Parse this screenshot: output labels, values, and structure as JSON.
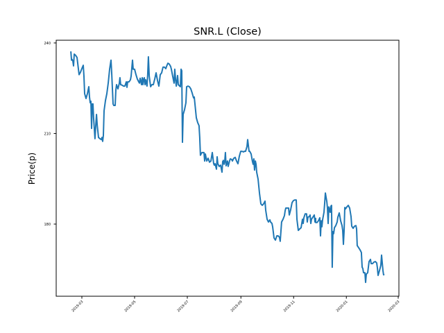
{
  "chart_data": {
    "type": "line",
    "title": "SNR.L (Close)",
    "xlabel": "",
    "ylabel": "Price(p)",
    "x_unit": "days since 2019-03-01",
    "xlim": [
      -29.7,
      366.8
    ],
    "ylim": [
      156.1,
      240.9
    ],
    "grid": false,
    "color": "#1f77b4",
    "yticks": [
      {
        "value": 180,
        "label": "180"
      },
      {
        "value": 210,
        "label": "210"
      },
      {
        "value": 240,
        "label": "240"
      }
    ],
    "xticks": [
      {
        "value": 0,
        "label": "2019-03"
      },
      {
        "value": 61,
        "label": "2019-05"
      },
      {
        "value": 122,
        "label": "2019-07"
      },
      {
        "value": 184,
        "label": "2019-09"
      },
      {
        "value": 245,
        "label": "2019-11"
      },
      {
        "value": 306,
        "label": "2020-01"
      },
      {
        "value": 366,
        "label": "2020-03"
      }
    ],
    "series": [
      {
        "name": "Close",
        "points": [
          [
            -12.8,
            237.2
          ],
          [
            -12.0,
            234.3
          ],
          [
            -11.2,
            234.5
          ],
          [
            -10.4,
            234.0
          ],
          [
            -9.6,
            232.4
          ],
          [
            -8.8,
            236.3
          ],
          [
            -7.2,
            235.9
          ],
          [
            -5.6,
            235.2
          ],
          [
            -3.2,
            229.5
          ],
          [
            -1.6,
            230.3
          ],
          [
            0,
            231.5
          ],
          [
            1.6,
            232.6
          ],
          [
            2.4,
            229.0
          ],
          [
            3.2,
            223.2
          ],
          [
            4.8,
            221.6
          ],
          [
            6.4,
            223.2
          ],
          [
            8.0,
            225.5
          ],
          [
            8.8,
            222.1
          ],
          [
            9.6,
            220.2
          ],
          [
            10.4,
            220.7
          ],
          [
            11.2,
            211.7
          ],
          [
            12.0,
            219.8
          ],
          [
            12.8,
            219.8
          ],
          [
            13.6,
            215.2
          ],
          [
            15.2,
            208.3
          ],
          [
            16.1,
            212.9
          ],
          [
            16.9,
            216.3
          ],
          [
            17.7,
            212.9
          ],
          [
            19.3,
            208.7
          ],
          [
            20.9,
            208.3
          ],
          [
            22.5,
            208.0
          ],
          [
            23.3,
            208.7
          ],
          [
            24.1,
            207.4
          ],
          [
            24.9,
            209.4
          ],
          [
            25.7,
            217.5
          ],
          [
            27.3,
            220.9
          ],
          [
            28.9,
            223.2
          ],
          [
            30.5,
            226.7
          ],
          [
            31.3,
            229.0
          ],
          [
            32.1,
            231.3
          ],
          [
            33.7,
            234.3
          ],
          [
            34.5,
            230.1
          ],
          [
            36.1,
            219.8
          ],
          [
            36.9,
            219.3
          ],
          [
            38.5,
            219.3
          ],
          [
            39.3,
            224.4
          ],
          [
            40.1,
            226.2
          ],
          [
            41.7,
            224.8
          ],
          [
            43.3,
            226.7
          ],
          [
            44.1,
            228.5
          ],
          [
            44.9,
            226.2
          ],
          [
            46.6,
            226.0
          ],
          [
            48.2,
            225.7
          ],
          [
            49.8,
            225.7
          ],
          [
            51.4,
            227.1
          ],
          [
            52.2,
            225.3
          ],
          [
            53.0,
            227.1
          ],
          [
            54.6,
            227.1
          ],
          [
            56.2,
            227.8
          ],
          [
            57.0,
            229.0
          ],
          [
            58.6,
            234.3
          ],
          [
            59.4,
            231.3
          ],
          [
            61.0,
            231.3
          ],
          [
            62.6,
            229.5
          ],
          [
            64.2,
            228.0
          ],
          [
            65.8,
            227.1
          ],
          [
            66.6,
            226.7
          ],
          [
            67.4,
            228.3
          ],
          [
            69.0,
            226.2
          ],
          [
            69.8,
            228.5
          ],
          [
            70.6,
            226.2
          ],
          [
            71.4,
            228.0
          ],
          [
            72.2,
            228.5
          ],
          [
            73.0,
            226.2
          ],
          [
            73.8,
            227.8
          ],
          [
            75.4,
            225.7
          ],
          [
            76.2,
            229.5
          ],
          [
            77.0,
            235.4
          ],
          [
            77.9,
            229.0
          ],
          [
            79.5,
            225.5
          ],
          [
            81.1,
            226.2
          ],
          [
            82.7,
            226.2
          ],
          [
            84.3,
            228.0
          ],
          [
            85.9,
            230.1
          ],
          [
            87.5,
            227.6
          ],
          [
            89.1,
            225.7
          ],
          [
            90.7,
            229.5
          ],
          [
            92.3,
            230.1
          ],
          [
            93.9,
            232.0
          ],
          [
            95.5,
            232.0
          ],
          [
            97.1,
            231.5
          ],
          [
            97.9,
            232.2
          ],
          [
            99.5,
            233.3
          ],
          [
            101.1,
            233.0
          ],
          [
            102.7,
            232.2
          ],
          [
            103.5,
            231.3
          ],
          [
            105.1,
            229.0
          ],
          [
            106.7,
            226.7
          ],
          [
            107.5,
            231.3
          ],
          [
            108.4,
            227.8
          ],
          [
            109.2,
            225.7
          ],
          [
            110.8,
            229.2
          ],
          [
            111.6,
            226.2
          ],
          [
            113.2,
            225.7
          ],
          [
            114.0,
            225.5
          ],
          [
            114.8,
            231.3
          ],
          [
            115.6,
            230.8
          ],
          [
            116.4,
            207.1
          ],
          [
            117.2,
            216.3
          ],
          [
            118.8,
            217.9
          ],
          [
            120.4,
            220.2
          ],
          [
            121.2,
            225.5
          ],
          [
            122.8,
            225.7
          ],
          [
            124.4,
            225.5
          ],
          [
            126.0,
            224.8
          ],
          [
            127.6,
            223.4
          ],
          [
            129.2,
            221.8
          ],
          [
            130.0,
            222.1
          ],
          [
            131.6,
            217.5
          ],
          [
            132.4,
            215.2
          ],
          [
            134.0,
            213.6
          ],
          [
            135.6,
            212.6
          ],
          [
            136.4,
            208.7
          ],
          [
            137.2,
            202.8
          ],
          [
            138.9,
            203.7
          ],
          [
            140.5,
            203.7
          ],
          [
            141.3,
            203.7
          ],
          [
            142.1,
            200.9
          ],
          [
            142.9,
            203.2
          ],
          [
            144.5,
            200.9
          ],
          [
            146.1,
            201.8
          ],
          [
            147.7,
            200.5
          ],
          [
            149.3,
            200.9
          ],
          [
            150.9,
            203.7
          ],
          [
            152.5,
            200.0
          ],
          [
            153.3,
            199.5
          ],
          [
            154.1,
            200.0
          ],
          [
            155.7,
            198.2
          ],
          [
            156.5,
            202.3
          ],
          [
            157.3,
            200.0
          ],
          [
            158.9,
            199.1
          ],
          [
            160.5,
            199.5
          ],
          [
            162.1,
            197.2
          ],
          [
            162.9,
            200.7
          ],
          [
            163.7,
            201.1
          ],
          [
            164.5,
            199.8
          ],
          [
            165.3,
            200.9
          ],
          [
            166.1,
            203.7
          ],
          [
            166.9,
            199.3
          ],
          [
            168.5,
            200.9
          ],
          [
            169.3,
            199.1
          ],
          [
            171.0,
            201.1
          ],
          [
            171.8,
            201.6
          ],
          [
            173.4,
            201.4
          ],
          [
            174.2,
            200.9
          ],
          [
            175.8,
            201.8
          ],
          [
            177.4,
            202.1
          ],
          [
            179.0,
            200.9
          ],
          [
            180.6,
            200.0
          ],
          [
            182.2,
            202.5
          ],
          [
            183.8,
            204.1
          ],
          [
            185.4,
            204.1
          ],
          [
            187.0,
            203.9
          ],
          [
            187.8,
            204.1
          ],
          [
            189.4,
            204.1
          ],
          [
            191.0,
            205.7
          ],
          [
            191.8,
            208.0
          ],
          [
            193.4,
            204.1
          ],
          [
            194.2,
            204.1
          ],
          [
            195.8,
            203.2
          ],
          [
            197.4,
            200.7
          ],
          [
            198.2,
            199.8
          ],
          [
            199.0,
            201.6
          ],
          [
            199.8,
            197.9
          ],
          [
            200.7,
            200.9
          ],
          [
            201.5,
            199.8
          ],
          [
            202.3,
            197.2
          ],
          [
            203.9,
            194.9
          ],
          [
            205.5,
            190.3
          ],
          [
            207.1,
            186.7
          ],
          [
            208.7,
            186.2
          ],
          [
            210.3,
            186.7
          ],
          [
            211.9,
            187.6
          ],
          [
            212.7,
            184.6
          ],
          [
            214.3,
            181.6
          ],
          [
            215.9,
            180.7
          ],
          [
            217.5,
            181.4
          ],
          [
            218.3,
            180.7
          ],
          [
            219.9,
            180.2
          ],
          [
            220.7,
            179.1
          ],
          [
            222.3,
            175.4
          ],
          [
            223.9,
            174.7
          ],
          [
            225.5,
            176.1
          ],
          [
            227.1,
            176.1
          ],
          [
            228.7,
            175.6
          ],
          [
            229.5,
            174.3
          ],
          [
            231.1,
            180.7
          ],
          [
            232.8,
            181.6
          ],
          [
            234.4,
            182.8
          ],
          [
            235.2,
            184.4
          ],
          [
            236.0,
            185.3
          ],
          [
            236.8,
            185.3
          ],
          [
            238.4,
            185.3
          ],
          [
            239.2,
            185.3
          ],
          [
            240.0,
            183.0
          ],
          [
            241.6,
            184.8
          ],
          [
            243.2,
            187.1
          ],
          [
            244.8,
            187.8
          ],
          [
            246.4,
            188.0
          ],
          [
            248.0,
            188.0
          ],
          [
            248.8,
            181.6
          ],
          [
            250.4,
            177.9
          ],
          [
            252.0,
            178.4
          ],
          [
            253.6,
            178.8
          ],
          [
            255.2,
            181.6
          ],
          [
            256.0,
            181.1
          ],
          [
            256.0,
            180.2
          ],
          [
            256.8,
            182.1
          ],
          [
            258.4,
            183.4
          ],
          [
            260.0,
            183.4
          ],
          [
            260.8,
            180.7
          ],
          [
            261.6,
            182.3
          ],
          [
            263.3,
            182.5
          ],
          [
            264.1,
            183.0
          ],
          [
            264.9,
            180.2
          ],
          [
            265.7,
            181.6
          ],
          [
            267.3,
            182.3
          ],
          [
            268.9,
            183.0
          ],
          [
            269.7,
            180.7
          ],
          [
            270.5,
            181.9
          ],
          [
            270.5,
            180.5
          ],
          [
            272.1,
            180.5
          ],
          [
            273.7,
            181.1
          ],
          [
            275.3,
            182.1
          ],
          [
            276.1,
            176.1
          ],
          [
            276.9,
            181.1
          ],
          [
            277.7,
            179.1
          ],
          [
            278.5,
            181.4
          ],
          [
            280.1,
            183.9
          ],
          [
            280.9,
            186.9
          ],
          [
            281.7,
            190.3
          ],
          [
            282.5,
            188.9
          ],
          [
            283.3,
            187.6
          ],
          [
            284.1,
            185.3
          ],
          [
            284.9,
            180.2
          ],
          [
            285.7,
            185.7
          ],
          [
            287.3,
            183.9
          ],
          [
            288.1,
            185.9
          ],
          [
            288.9,
            186.2
          ],
          [
            289.7,
            165.7
          ],
          [
            290.5,
            177.5
          ],
          [
            291.3,
            176.8
          ],
          [
            292.2,
            178.8
          ],
          [
            293.8,
            179.5
          ],
          [
            295.4,
            180.7
          ],
          [
            296.2,
            182.3
          ],
          [
            297.8,
            183.7
          ],
          [
            299.4,
            181.1
          ],
          [
            301.0,
            179.5
          ],
          [
            301.8,
            177.9
          ],
          [
            302.6,
            173.3
          ],
          [
            303.4,
            177.7
          ],
          [
            304.2,
            185.5
          ],
          [
            305.0,
            185.0
          ],
          [
            306.6,
            185.7
          ],
          [
            308.2,
            186.2
          ],
          [
            309.8,
            185.3
          ],
          [
            311.4,
            182.5
          ],
          [
            312.2,
            179.3
          ],
          [
            313.8,
            178.6
          ],
          [
            315.4,
            179.3
          ],
          [
            317.0,
            179.5
          ],
          [
            317.8,
            178.4
          ],
          [
            318.6,
            172.9
          ],
          [
            320.2,
            172.2
          ],
          [
            321.8,
            171.5
          ],
          [
            323.4,
            170.6
          ],
          [
            324.3,
            165.7
          ],
          [
            325.1,
            165.3
          ],
          [
            325.9,
            163.9
          ],
          [
            327.5,
            163.9
          ],
          [
            328.3,
            160.7
          ],
          [
            329.1,
            163.4
          ],
          [
            330.7,
            163.9
          ],
          [
            332.3,
            167.6
          ],
          [
            333.9,
            168.3
          ],
          [
            334.7,
            166.9
          ],
          [
            336.3,
            166.9
          ],
          [
            337.9,
            167.4
          ],
          [
            339.5,
            167.6
          ],
          [
            341.1,
            167.1
          ],
          [
            341.9,
            165.5
          ],
          [
            342.7,
            163.0
          ],
          [
            344.3,
            164.6
          ],
          [
            345.9,
            166.4
          ],
          [
            346.7,
            169.7
          ],
          [
            348.3,
            164.6
          ],
          [
            349.1,
            163.2
          ],
          [
            349.9,
            163.4
          ]
        ]
      }
    ]
  }
}
